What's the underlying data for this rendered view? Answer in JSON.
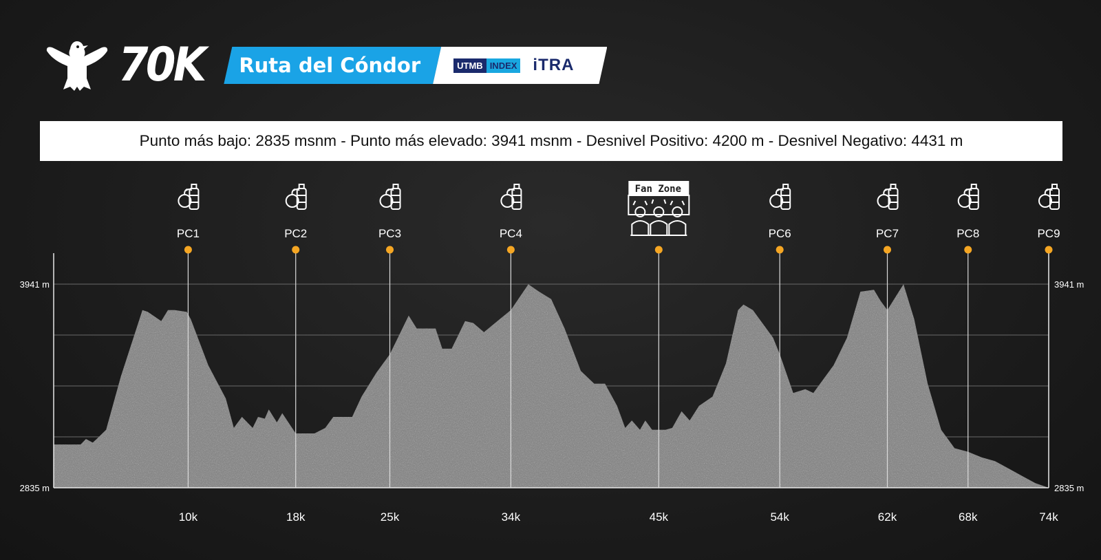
{
  "header": {
    "distance": "70K",
    "race_name": "Ruta del Cóndor",
    "partner1_a": "UTMB",
    "partner1_b": "INDEX",
    "partner2": "iTRA"
  },
  "stats_text": "Punto más bajo: 2835 msnm - Punto más elevado: 3941 msnm - Desnivel Positivo: 4200 m - Desnivel Negativo: 4431 m",
  "colors": {
    "background": "#1c1c1c",
    "title_band": "#1aa3e6",
    "marker": "#f5a623",
    "profile_fill": "#8a8a8a"
  },
  "chart_data": {
    "type": "area",
    "xlim": [
      0,
      74
    ],
    "ylim": [
      2835,
      3941
    ],
    "y_tick_labels": [
      "3941 m",
      "2835 m"
    ],
    "grid": true,
    "x": [
      0,
      2,
      2.4,
      2.9,
      3.2,
      3.9,
      5,
      6.6,
      7,
      8,
      8.5,
      9,
      9.9,
      10.2,
      11.5,
      12.8,
      13.4,
      14,
      14.8,
      15.2,
      15.7,
      16,
      16.6,
      17,
      18,
      19.4,
      20.2,
      20.8,
      22.2,
      22.9,
      24,
      25,
      26.4,
      27,
      28.4,
      28.9,
      29.6,
      30.6,
      31.2,
      32,
      33,
      34,
      35.3,
      36.1,
      37,
      38,
      39.2,
      40.2,
      41,
      41.9,
      42.5,
      43,
      43.6,
      44,
      44.5,
      45,
      45.5,
      46,
      46.7,
      47.3,
      48,
      49,
      50,
      50.9,
      51.3,
      52,
      53.5,
      54,
      55,
      55.9,
      56.5,
      57,
      58,
      59,
      60,
      61,
      61.5,
      62,
      62.6,
      63.2,
      64,
      65,
      66,
      67,
      68,
      69,
      70,
      71,
      72,
      73,
      74
    ],
    "y": [
      3070,
      3070,
      3100,
      3080,
      3100,
      3150,
      3440,
      3800,
      3790,
      3740,
      3800,
      3800,
      3790,
      3750,
      3500,
      3320,
      3160,
      3220,
      3160,
      3220,
      3210,
      3260,
      3190,
      3240,
      3130,
      3130,
      3160,
      3220,
      3220,
      3330,
      3460,
      3560,
      3770,
      3700,
      3700,
      3590,
      3590,
      3740,
      3730,
      3680,
      3740,
      3800,
      3940,
      3900,
      3860,
      3700,
      3470,
      3400,
      3400,
      3280,
      3160,
      3200,
      3150,
      3200,
      3150,
      3150,
      3150,
      3160,
      3250,
      3200,
      3280,
      3330,
      3510,
      3800,
      3830,
      3800,
      3650,
      3560,
      3350,
      3370,
      3350,
      3400,
      3500,
      3650,
      3900,
      3910,
      3850,
      3800,
      3870,
      3940,
      3750,
      3400,
      3150,
      3050,
      3030,
      3000,
      2980,
      2940,
      2900,
      2860,
      2835
    ],
    "checkpoints": [
      {
        "label": "PC1",
        "km": 10,
        "km_label": "10k",
        "icon": "aid-station-icon"
      },
      {
        "label": "PC2",
        "km": 18,
        "km_label": "18k",
        "icon": "aid-station-icon"
      },
      {
        "label": "PC3",
        "km": 25,
        "km_label": "25k",
        "icon": "aid-station-icon"
      },
      {
        "label": "PC4",
        "km": 34,
        "km_label": "34k",
        "icon": "aid-station-icon"
      },
      {
        "label": "",
        "km": 45,
        "km_label": "45k",
        "icon": "fan-zone-icon",
        "icon_text": "Fan Zone"
      },
      {
        "label": "PC6",
        "km": 54,
        "km_label": "54k",
        "icon": "aid-station-icon"
      },
      {
        "label": "PC7",
        "km": 62,
        "km_label": "62k",
        "icon": "aid-station-icon"
      },
      {
        "label": "PC8",
        "km": 68,
        "km_label": "68k",
        "icon": "aid-station-icon"
      },
      {
        "label": "PC9",
        "km": 74,
        "km_label": "74k",
        "icon": "aid-station-icon"
      }
    ]
  }
}
